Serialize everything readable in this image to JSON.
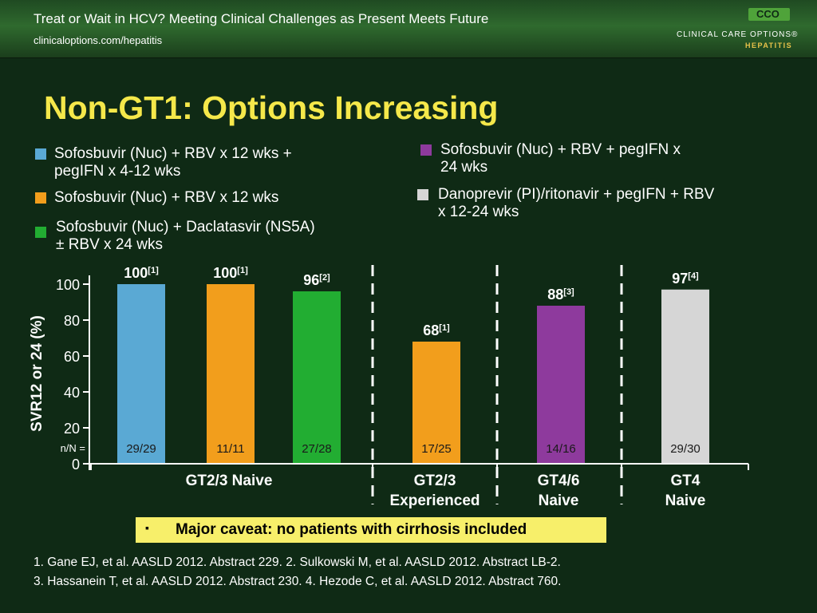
{
  "header": {
    "title": "Treat or Wait in HCV? Meeting Clinical Challenges as Present Meets Future",
    "url": "clinicaloptions.com/hepatitis",
    "logo_mark": "CCO",
    "logo_line1": "CLINICAL CARE OPTIONS®",
    "logo_line2": "HEPATITIS"
  },
  "slide_title": "Non-GT1: Options Increasing",
  "legend": [
    {
      "label_lines": [
        "Sofosbuvir (Nuc) + RBV x 12 wks +",
        "pegIFN x 4-12 wks"
      ],
      "color": "#5aa9d4"
    },
    {
      "label_lines": [
        "Sofosbuvir (Nuc) + RBV x 12 wks"
      ],
      "color": "#f29e1c"
    },
    {
      "label_lines": [
        "Sofosbuvir (Nuc) + Daclatasvir (NS5A)",
        "± RBV x 24 wks"
      ],
      "color": "#22ad32"
    },
    {
      "label_lines": [
        "Sofosbuvir (Nuc) + RBV + pegIFN x",
        "24 wks"
      ],
      "color": "#8e3a9d"
    },
    {
      "label_lines": [
        "Danoprevir (PI)/ritonavir + pegIFN + RBV",
        "x 12-24 wks"
      ],
      "color": "#d6d6d6"
    }
  ],
  "chart_data": {
    "type": "bar",
    "ylabel": "SVR12 or 24 (%)",
    "ylim": [
      0,
      100
    ],
    "yticks": [
      0,
      20,
      40,
      60,
      80,
      100
    ],
    "nN_label": "n/N =",
    "groups": [
      {
        "label_lines": [
          "GT2/3 Naive"
        ]
      },
      {
        "label_lines": [
          "GT2/3",
          "Experienced"
        ]
      },
      {
        "label_lines": [
          "GT4/6",
          "Naive"
        ]
      },
      {
        "label_lines": [
          "GT4",
          "Naive"
        ]
      }
    ],
    "bars": [
      {
        "group": 0,
        "value": 100,
        "value_label": "100",
        "ref": "[1]",
        "nN": "29/29",
        "color": "#5aa9d4"
      },
      {
        "group": 0,
        "value": 100,
        "value_label": "100",
        "ref": "[1]",
        "nN": "11/11",
        "color": "#f29e1c"
      },
      {
        "group": 0,
        "value": 96,
        "value_label": "96",
        "ref": "[2]",
        "nN": "27/28",
        "color": "#22ad32"
      },
      {
        "group": 1,
        "value": 68,
        "value_label": "68",
        "ref": "[1]",
        "nN": "17/25",
        "color": "#f29e1c"
      },
      {
        "group": 2,
        "value": 88,
        "value_label": "88",
        "ref": "[3]",
        "nN": "14/16",
        "color": "#8e3a9d"
      },
      {
        "group": 3,
        "value": 97,
        "value_label": "97",
        "ref": "[4]",
        "nN": "29/30",
        "color": "#d6d6d6"
      }
    ]
  },
  "caveat": {
    "bullet": "▪",
    "text": "Major caveat: no patients with cirrhosis included"
  },
  "references": [
    "1. Gane EJ, et al. AASLD 2012. Abstract 229. 2. Sulkowski M, et al. AASLD 2012. Abstract LB-2.",
    "3. Hassanein T, et al. AASLD 2012. Abstract 230. 4. Hezode C, et al. AASLD 2012. Abstract 760."
  ]
}
